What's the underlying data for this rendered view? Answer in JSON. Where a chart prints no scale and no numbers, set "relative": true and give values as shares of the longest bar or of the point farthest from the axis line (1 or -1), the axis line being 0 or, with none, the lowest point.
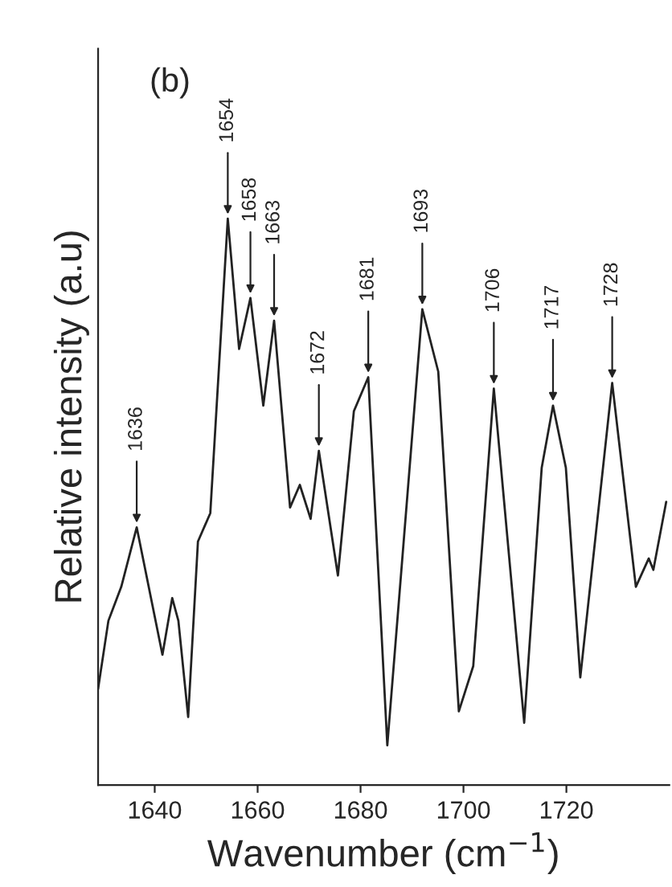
{
  "chart_data": {
    "type": "line",
    "title": "(b)",
    "xlabel": "Wavenumber (cm$^{−1}$)",
    "ylabel": "Relative intensity (a.u)",
    "relative": true,
    "xlim": [
      1629,
      1740
    ],
    "xticks": [
      1640,
      1660,
      1680,
      1700,
      1720
    ],
    "x": [
      1629,
      1631.0,
      1633.5,
      1636.5,
      1641.5,
      1643.4,
      1644.6,
      1646.5,
      1648.4,
      1650.8,
      1654.2,
      1656.4,
      1658.6,
      1661.1,
      1663.2,
      1666.3,
      1668.2,
      1670.3,
      1671.9,
      1675.6,
      1678.7,
      1681.5,
      1685.2,
      1692.0,
      1695.1,
      1699.1,
      1701.9,
      1705.9,
      1711.8,
      1715.2,
      1717.4,
      1719.9,
      1722.7,
      1728.9,
      1733.5,
      1736.0,
      1736.9,
      1739.4
    ],
    "series": [
      {
        "color": "#222222",
        "values": [
          0.17,
          0.29,
          0.35,
          0.455,
          0.23,
          0.33,
          0.29,
          0.12,
          0.43,
          0.48,
          1.0,
          0.77,
          0.86,
          0.67,
          0.82,
          0.49,
          0.53,
          0.47,
          0.59,
          0.37,
          0.66,
          0.72,
          0.07,
          0.84,
          0.73,
          0.13,
          0.21,
          0.7,
          0.11,
          0.56,
          0.67,
          0.56,
          0.19,
          0.71,
          0.35,
          0.4,
          0.38,
          0.5
        ]
      }
    ],
    "annotations": [
      {
        "text": "1636",
        "x": 1636.5,
        "y": 0.455
      },
      {
        "text": "1654",
        "x": 1654.2,
        "y": 1.0
      },
      {
        "text": "1658",
        "x": 1658.6,
        "y": 0.86
      },
      {
        "text": "1663",
        "x": 1663.2,
        "y": 0.82
      },
      {
        "text": "1672",
        "x": 1671.9,
        "y": 0.59
      },
      {
        "text": "1681",
        "x": 1681.5,
        "y": 0.72
      },
      {
        "text": "1693",
        "x": 1692.0,
        "y": 0.84
      },
      {
        "text": "1706",
        "x": 1705.9,
        "y": 0.7
      },
      {
        "text": "1717",
        "x": 1717.4,
        "y": 0.67
      },
      {
        "text": "1728",
        "x": 1728.9,
        "y": 0.71
      }
    ],
    "grid": false,
    "legend": false
  }
}
